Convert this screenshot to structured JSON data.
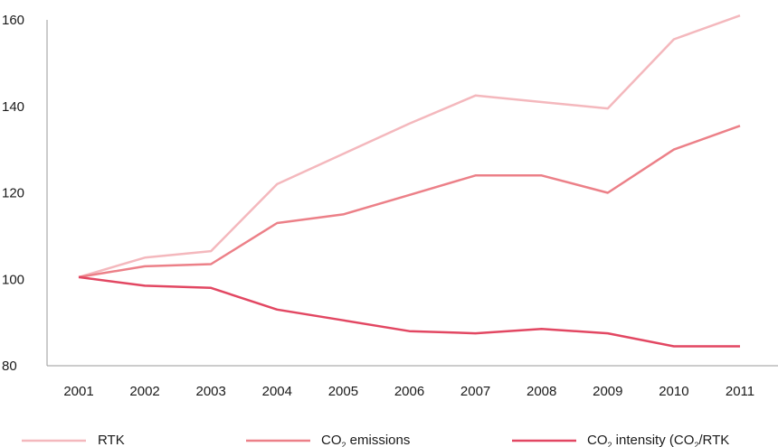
{
  "chart_data": {
    "type": "line",
    "x": [
      "2001",
      "2002",
      "2003",
      "2004",
      "2005",
      "2006",
      "2007",
      "2008",
      "2009",
      "2010",
      "2011"
    ],
    "ylim": [
      80,
      160
    ],
    "yticks": [
      80,
      100,
      120,
      140,
      160
    ],
    "grid": false,
    "legend_position": "bottom",
    "series": [
      {
        "name": "RTK",
        "color": "#f4b8bd",
        "values": [
          100.5,
          105,
          106.5,
          122,
          129,
          136,
          142.5,
          141,
          139.5,
          155.5,
          161
        ]
      },
      {
        "name": "CO2 emissions",
        "color": "#ec8088",
        "values": [
          100.5,
          103,
          103.5,
          113,
          115,
          119.5,
          124,
          124,
          120,
          130,
          135.5
        ]
      },
      {
        "name": "CO2 intensity (CO2/RTK",
        "color": "#e24762",
        "values": [
          100.5,
          98.5,
          98,
          93,
          90.5,
          88,
          87.5,
          88.5,
          87.5,
          84.5,
          84.5
        ]
      }
    ],
    "legend": [
      {
        "main": "CO",
        "sub": "2",
        "rest": " emissions"
      },
      {
        "main": "CO",
        "sub": "2",
        "rest": " intensity (CO",
        "sub2": "2",
        "rest2": "/RTK"
      }
    ]
  }
}
